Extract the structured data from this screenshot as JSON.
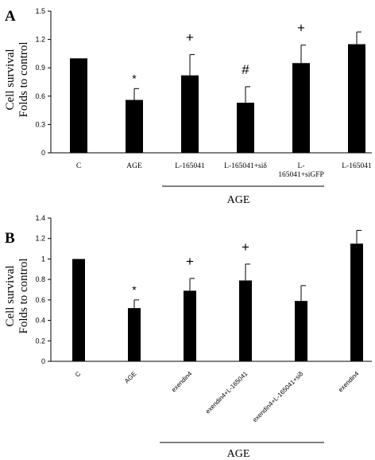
{
  "chart_data": [
    {
      "panel": "A",
      "type": "bar",
      "ylabel": [
        "Cell survival",
        "Folds to control"
      ],
      "ylim": [
        0,
        1.5
      ],
      "yticks": [
        "0",
        "0.3",
        "0.6",
        "0.9",
        "1.2",
        "1.5"
      ],
      "categories": [
        "C",
        "AGE",
        "L-165041",
        "L-165041+siδ",
        "L-\n165041+siGFP",
        "L-165041"
      ],
      "values": [
        1.0,
        0.56,
        0.82,
        0.53,
        0.95,
        1.15
      ],
      "errors": [
        0,
        0.12,
        0.22,
        0.17,
        0.19,
        0.13
      ],
      "markers": [
        "",
        "*",
        "+",
        "#",
        "+",
        ""
      ],
      "group_label": "AGE",
      "grid": false
    },
    {
      "panel": "B",
      "type": "bar",
      "ylabel": [
        "Cell survival",
        "Folds to control"
      ],
      "ylim": [
        0,
        1.4
      ],
      "yticks": [
        "0",
        "0.2",
        "0.4",
        "0.6",
        "0.8",
        "1",
        "1.2",
        "1.4"
      ],
      "categories": [
        "C",
        "AGE",
        "exendin4",
        "exendin4+L-165041",
        "exendin4+L-165041+siδ",
        "exendin4"
      ],
      "values": [
        1.0,
        0.52,
        0.69,
        0.79,
        0.59,
        1.15
      ],
      "errors": [
        0,
        0.08,
        0.12,
        0.16,
        0.15,
        0.13
      ],
      "markers": [
        "",
        "*",
        "+",
        "+",
        "",
        ""
      ],
      "group_label": "AGE",
      "grid": false
    }
  ]
}
